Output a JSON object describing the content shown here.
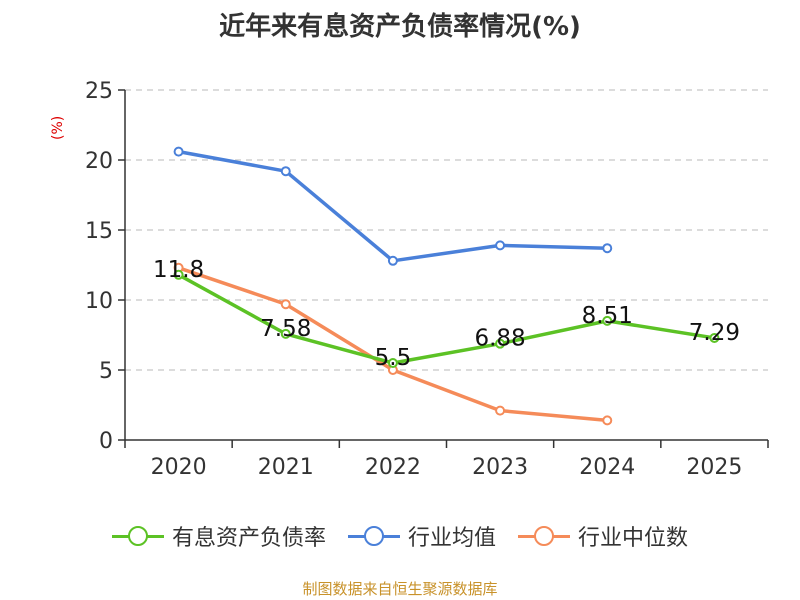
{
  "chart_data": {
    "type": "line",
    "title": "近年来有息资产负债率情况(%)",
    "ylabel": "(%)",
    "xlabel": "",
    "categories": [
      "2020",
      "2021",
      "2022",
      "2023",
      "2024",
      "2025"
    ],
    "ylim": [
      0,
      25
    ],
    "yticks": [
      0,
      5,
      10,
      15,
      20,
      25
    ],
    "grid": true,
    "legend_position": "bottom",
    "series": [
      {
        "name": "有息资产负债率",
        "color": "#5cc225",
        "values": [
          11.8,
          7.58,
          5.5,
          6.88,
          8.51,
          7.29
        ],
        "labels": [
          "11.8",
          "7.58",
          "5.5",
          "6.88",
          "8.51",
          "7.29"
        ]
      },
      {
        "name": "行业均值",
        "color": "#4a80d9",
        "values": [
          20.6,
          19.2,
          12.8,
          13.9,
          13.7,
          null
        ]
      },
      {
        "name": "行业中位数",
        "color": "#f58b59",
        "values": [
          12.3,
          9.7,
          5.0,
          2.1,
          1.4,
          null
        ]
      }
    ]
  },
  "source": "制图数据来自恒生聚源数据库"
}
